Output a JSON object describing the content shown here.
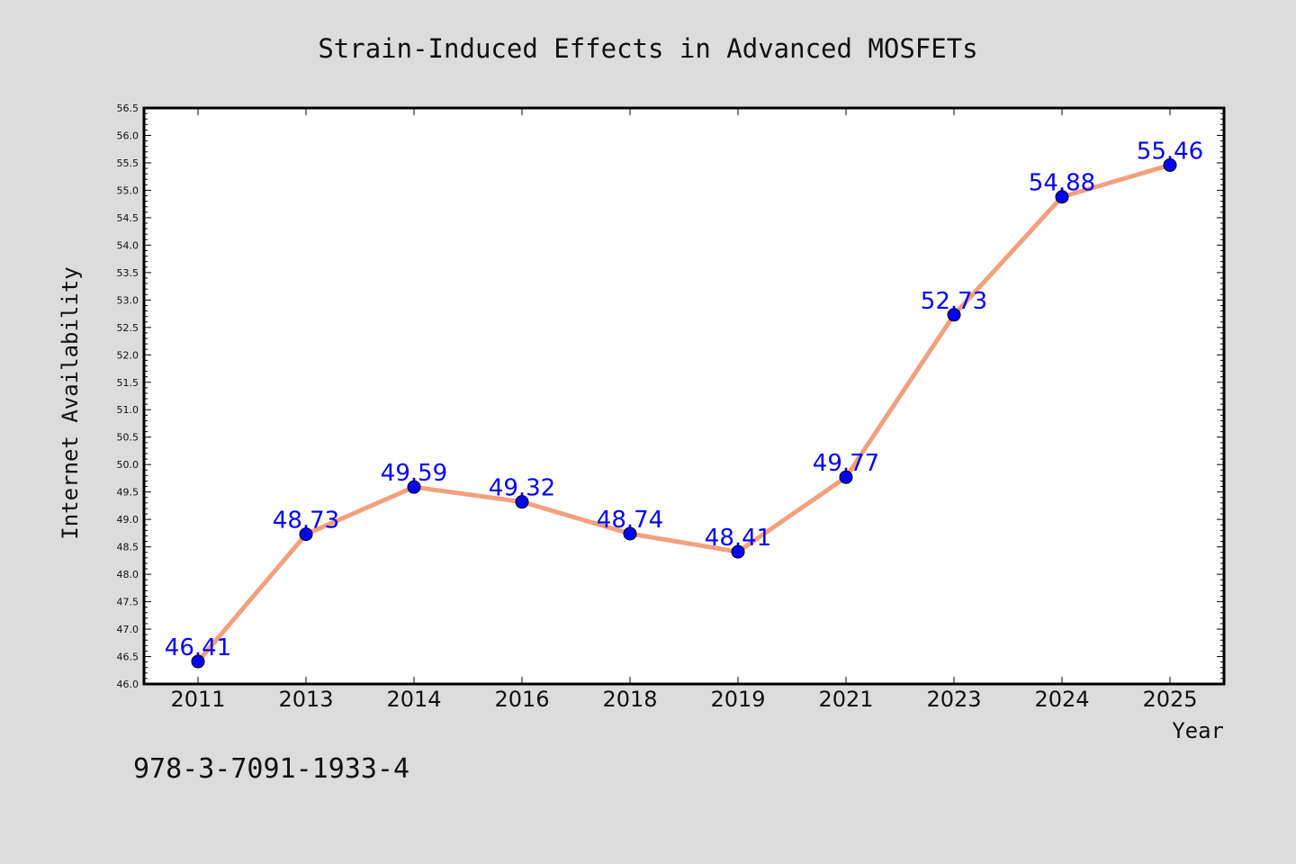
{
  "chart_data": {
    "type": "line",
    "title": "Strain-Induced Effects in Advanced MOSFETs",
    "xlabel": "Year",
    "ylabel": "Internet Availability",
    "categories": [
      "2011",
      "2013",
      "2014",
      "2016",
      "2018",
      "2019",
      "2021",
      "2023",
      "2024",
      "2025"
    ],
    "series": [
      {
        "values": [
          46.41,
          48.73,
          49.59,
          49.32,
          48.74,
          48.41,
          49.77,
          52.73,
          54.88,
          55.46
        ],
        "data_labels": [
          "46.41",
          "48.73",
          "49.59",
          "49.32",
          "48.74",
          "48.41",
          "49.77",
          "52.73",
          "54.88",
          "55.46"
        ]
      }
    ],
    "ylim": [
      46.0,
      56.5
    ],
    "ytick_step": 0.5,
    "grid": false,
    "colors": {
      "line": "#f4a07e",
      "marker": "#0000ff",
      "data_label": "#0000ff",
      "background": "#dcdcdc",
      "plot_background": "#ffffff"
    }
  },
  "annotation": {
    "isbn": "978-3-7091-1933-4"
  }
}
